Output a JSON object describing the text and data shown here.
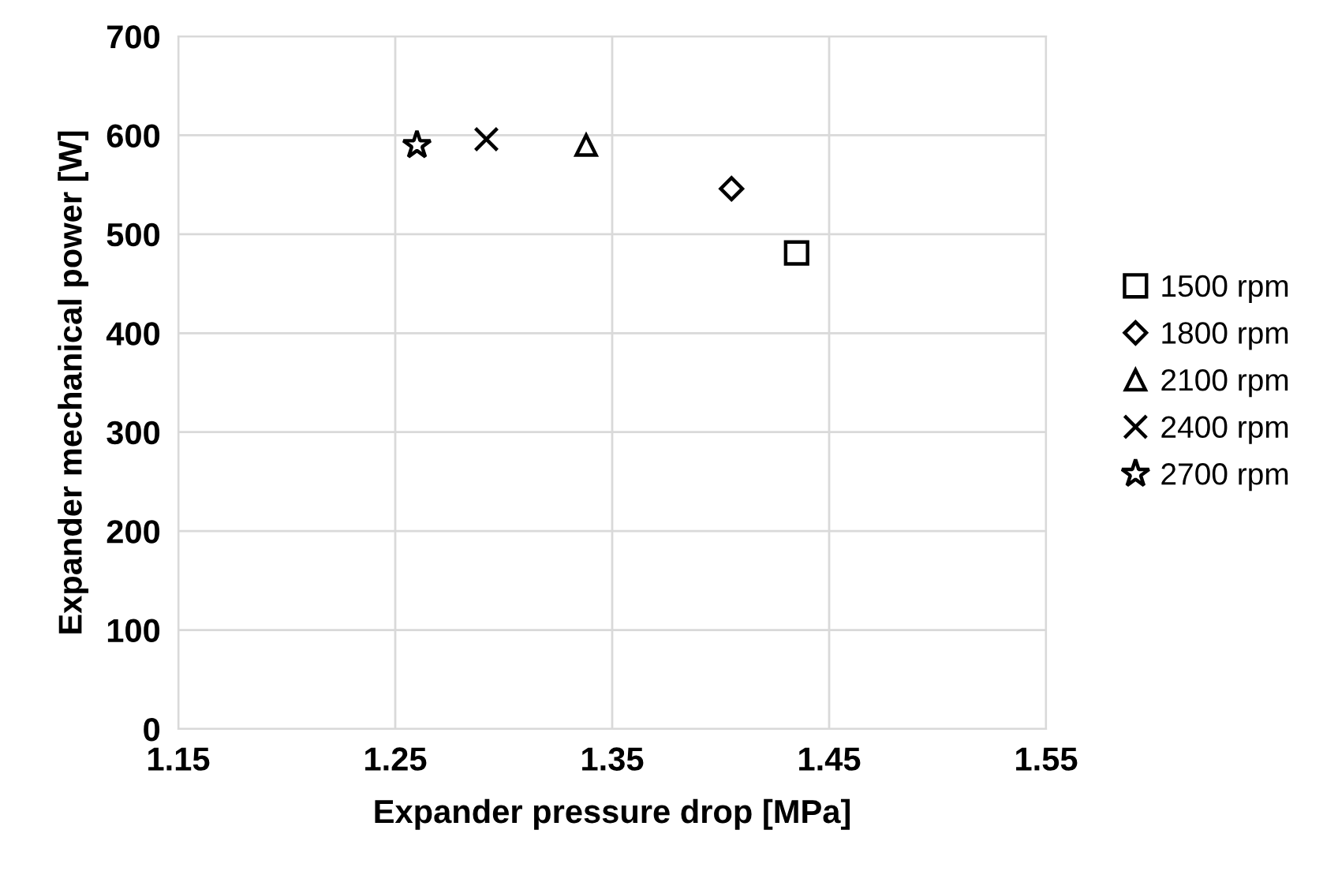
{
  "chart_data": {
    "type": "scatter",
    "xlabel": "Expander pressure drop [MPa]",
    "ylabel": "Expander mechanical power [W]",
    "xlim": [
      1.15,
      1.55
    ],
    "xticks": [
      1.15,
      1.25,
      1.35,
      1.45,
      1.55
    ],
    "ylim": [
      0,
      700
    ],
    "yticks": [
      0,
      100,
      200,
      300,
      400,
      500,
      600,
      700
    ],
    "grid": true,
    "legend": "right",
    "series": [
      {
        "name": "1500 rpm",
        "color": "#000000",
        "marker": "square",
        "x": [
          1.435
        ],
        "values": [
          481
        ]
      },
      {
        "name": "1800 rpm",
        "color": "#000000",
        "marker": "diamond",
        "x": [
          1.405
        ],
        "values": [
          546
        ]
      },
      {
        "name": "2100 rpm",
        "color": "#000000",
        "marker": "triangle",
        "x": [
          1.338
        ],
        "values": [
          590
        ]
      },
      {
        "name": "2400 rpm",
        "color": "#000000",
        "marker": "cross",
        "x": [
          1.292
        ],
        "values": [
          596
        ]
      },
      {
        "name": "2700 rpm",
        "color": "#000000",
        "marker": "star",
        "x": [
          1.26
        ],
        "values": [
          590
        ]
      }
    ]
  }
}
